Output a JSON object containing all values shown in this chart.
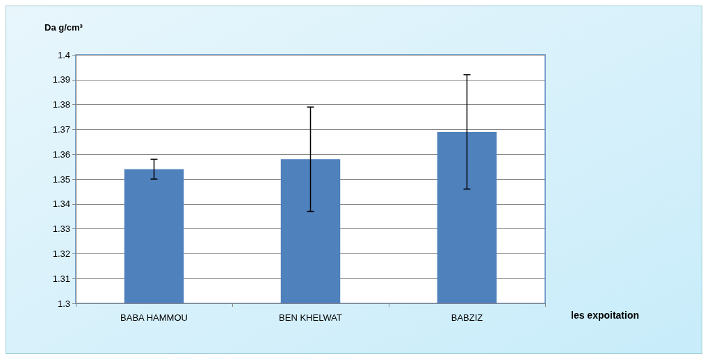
{
  "chart_data": {
    "type": "bar",
    "ylabel": "Da g/cm³",
    "xlabel": "les expoitation",
    "categories": [
      "BABA HAMMOU",
      "BEN KHELWAT",
      "BABZIZ"
    ],
    "values": [
      1.354,
      1.358,
      1.369
    ],
    "errors": [
      [
        1.35,
        1.358
      ],
      [
        1.337,
        1.379
      ],
      [
        1.346,
        1.392
      ]
    ],
    "color": "#4f81bd",
    "ylim": [
      1.3,
      1.4
    ],
    "yticks": [
      1.3,
      1.31,
      1.32,
      1.33,
      1.34,
      1.35,
      1.36,
      1.37,
      1.38,
      1.39,
      1.4
    ],
    "grid": "y"
  }
}
